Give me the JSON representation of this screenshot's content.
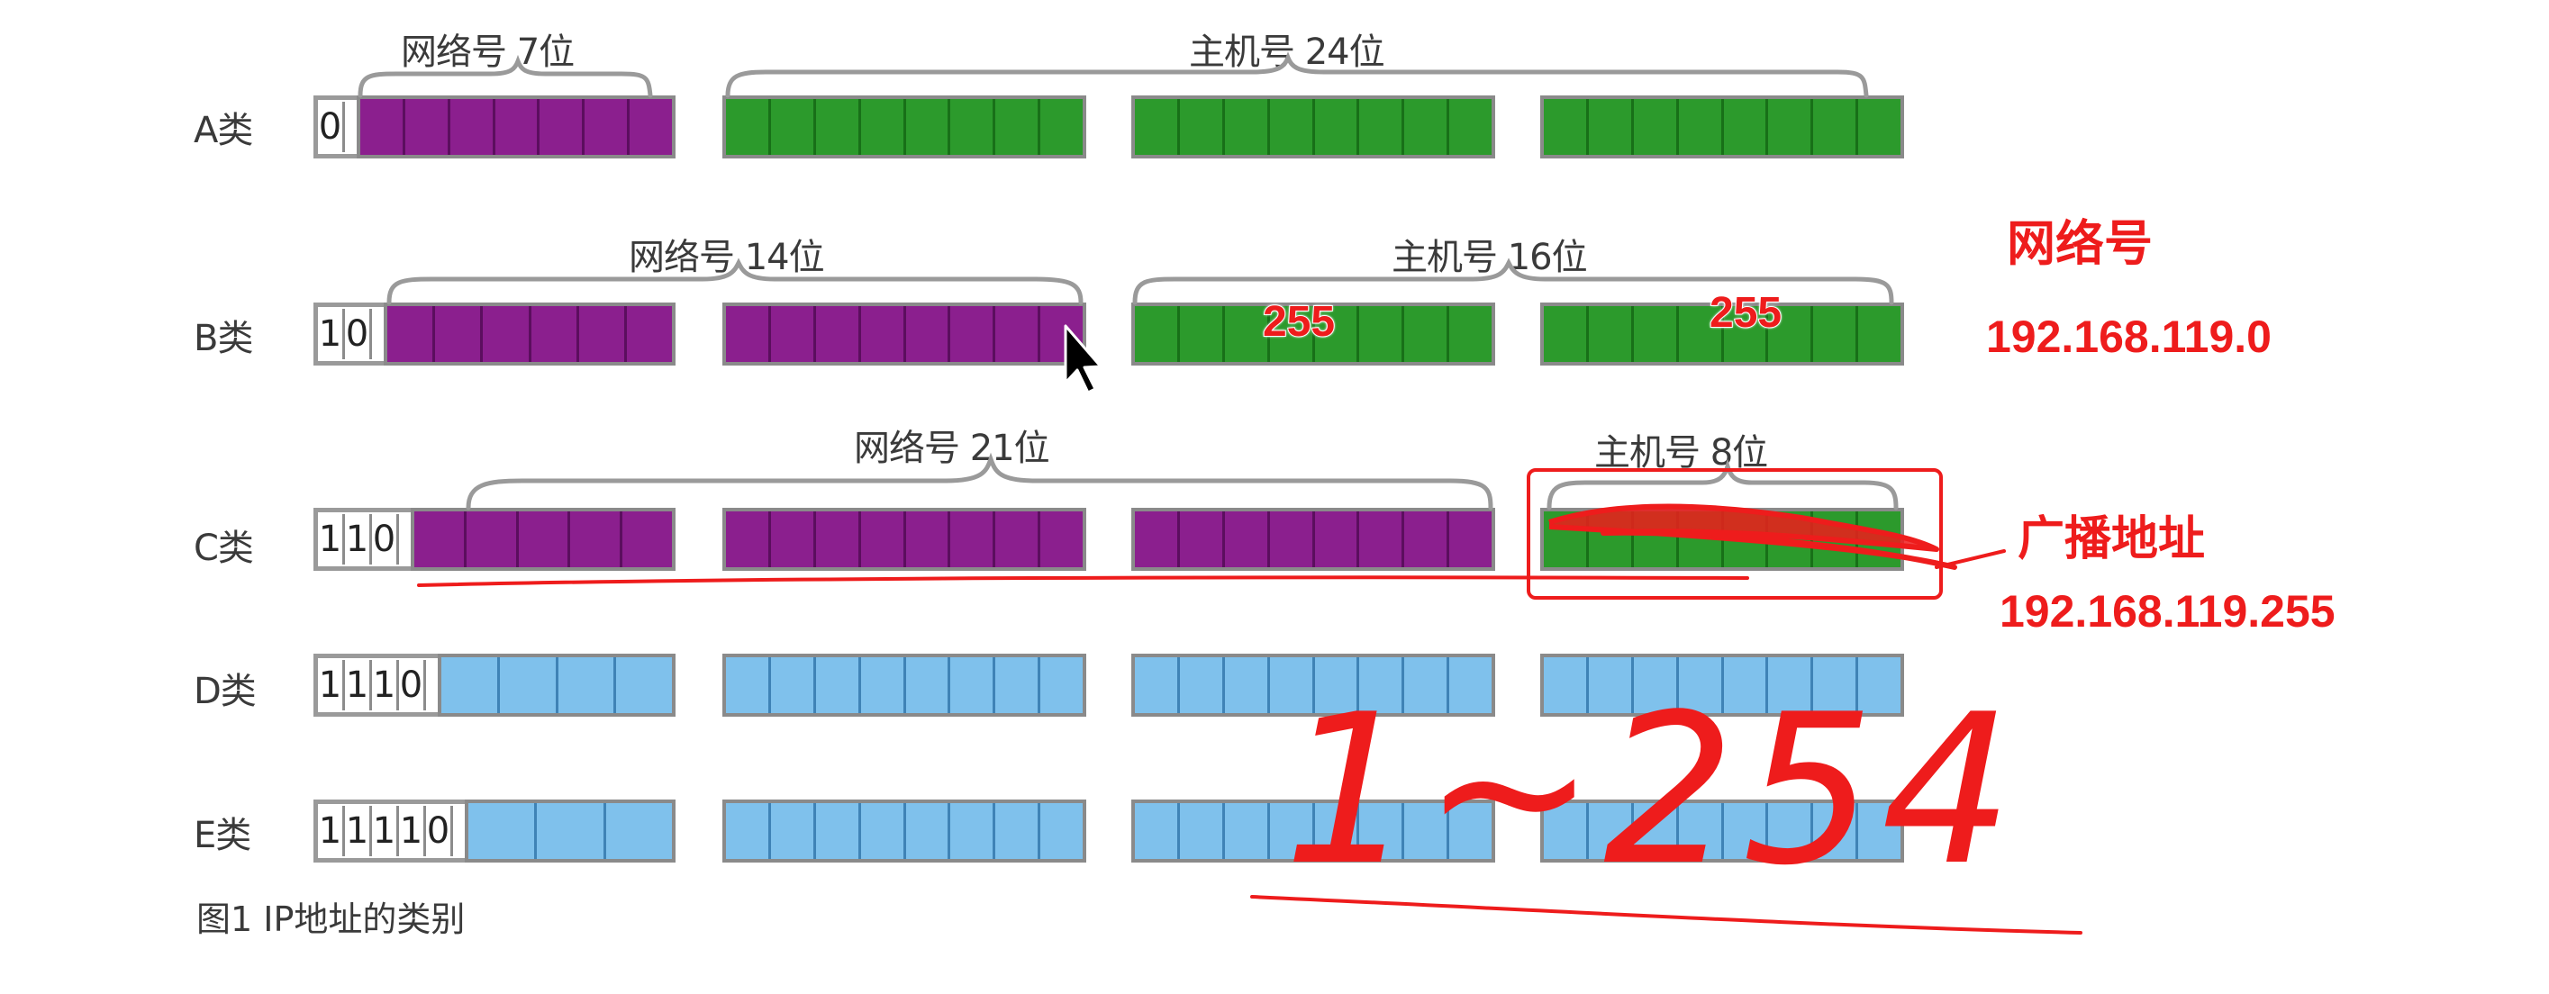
{
  "rows": [
    {
      "label": "A类",
      "prefix_bits": [
        "0"
      ],
      "octets": [
        "purple",
        "green",
        "green",
        "green"
      ]
    },
    {
      "label": "B类",
      "prefix_bits": [
        "1",
        "0"
      ],
      "octets": [
        "purple",
        "purple",
        "green",
        "green"
      ]
    },
    {
      "label": "C类",
      "prefix_bits": [
        "1",
        "1",
        "0"
      ],
      "octets": [
        "purple",
        "purple",
        "purple",
        "green"
      ]
    },
    {
      "label": "D类",
      "prefix_bits": [
        "1",
        "1",
        "1",
        "0"
      ],
      "octets": [
        "blue",
        "blue",
        "blue",
        "blue"
      ]
    },
    {
      "label": "E类",
      "prefix_bits": [
        "1",
        "1",
        "1",
        "1",
        "0"
      ],
      "octets": [
        "blue",
        "blue",
        "blue",
        "blue"
      ]
    }
  ],
  "segment_labels": {
    "a_network": "网络号 7位",
    "a_host": "主机号 24位",
    "b_network": "网络号 14位",
    "b_host": "主机号 16位",
    "c_network": "网络号 21位",
    "c_host": "主机号 8位"
  },
  "caption": "图1 IP地址的类别",
  "annotations": {
    "b_octet3_value": "255",
    "b_octet4_value": "255",
    "network_title": "网络号",
    "network_address": "192.168.119.0",
    "broadcast_title": "广播地址",
    "broadcast_address": "192.168.119.255",
    "handwritten_range": "1~254"
  },
  "colors": {
    "network": "#8b1f8e",
    "host": "#2c9a2c",
    "multicast_reserved": "#7fc1ec",
    "annotation_red": "#ee1c1c"
  },
  "icons": [
    "mouse-pointer-icon"
  ]
}
